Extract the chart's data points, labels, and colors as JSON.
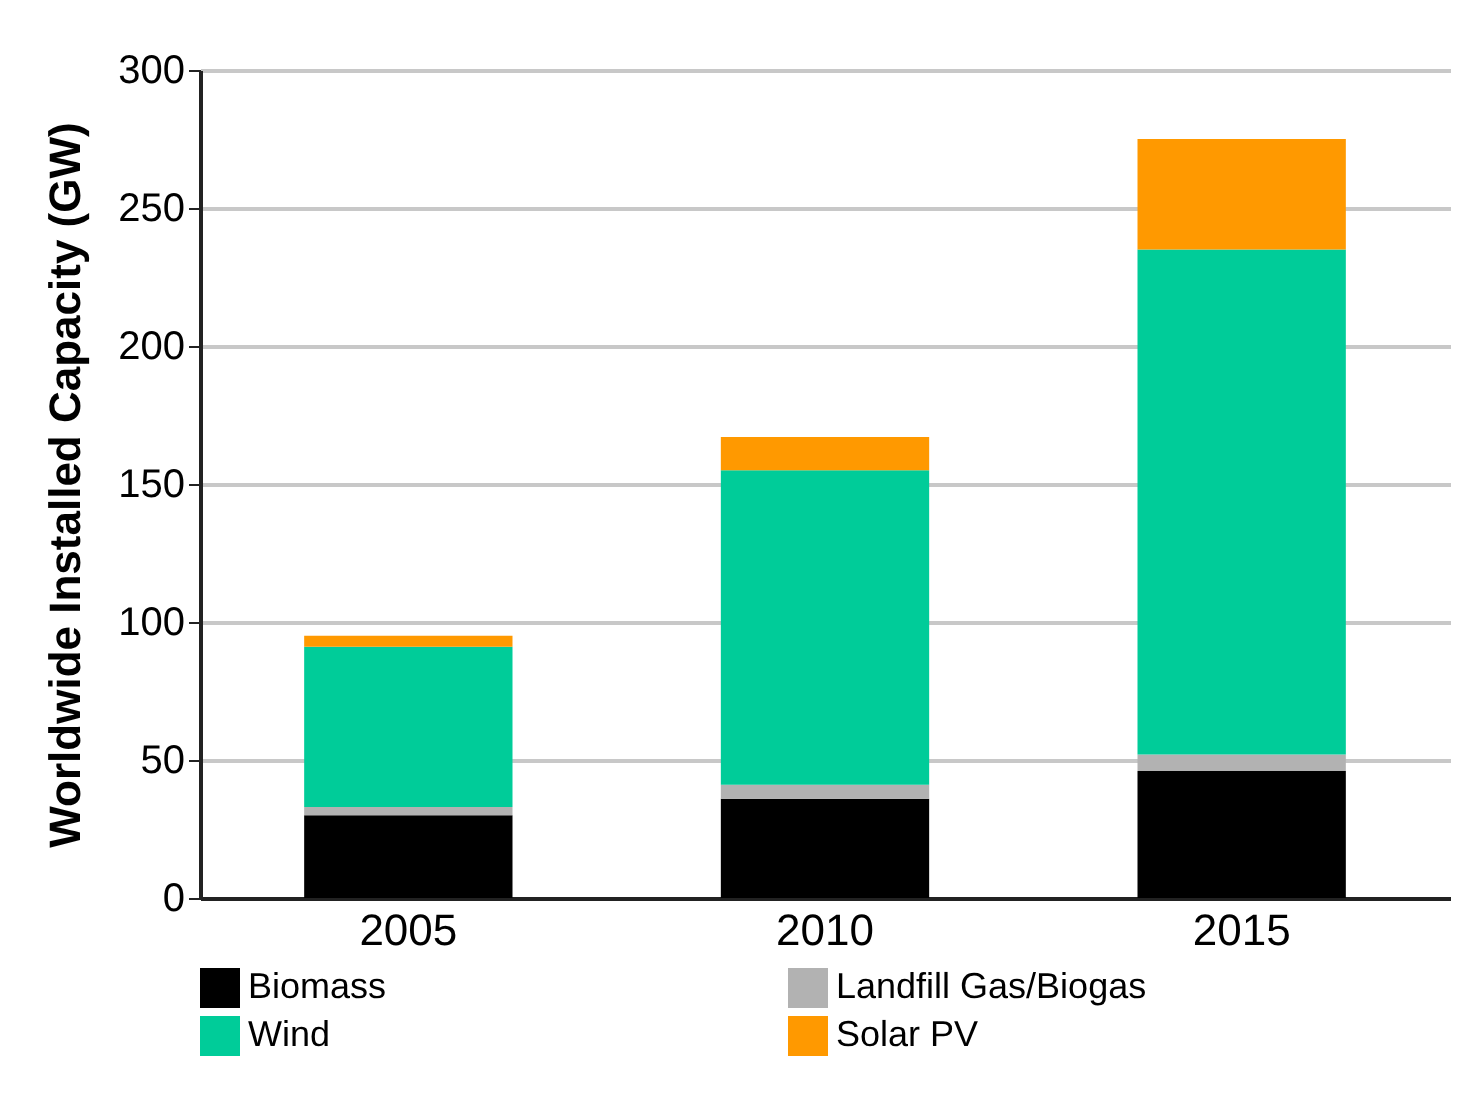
{
  "chart_data": {
    "type": "bar",
    "stacked": true,
    "ylabel": "Worldwide Installed Capacity (GW)",
    "categories": [
      "2005",
      "2010",
      "2015"
    ],
    "series": [
      {
        "name": "Biomass",
        "color": "#000000",
        "values": [
          30,
          36,
          46
        ]
      },
      {
        "name": "Landfill Gas/Biogas",
        "color": "#b2b2b2",
        "values": [
          3,
          5,
          6
        ]
      },
      {
        "name": "Wind",
        "color": "#00cc99",
        "values": [
          58,
          114,
          183
        ]
      },
      {
        "name": "Solar PV",
        "color": "#ff9900",
        "values": [
          4,
          12,
          40
        ]
      }
    ],
    "ylim": [
      0,
      300
    ],
    "yticks": [
      0,
      50,
      100,
      150,
      200,
      250,
      300
    ],
    "grid": "y",
    "legend": "bottom"
  }
}
